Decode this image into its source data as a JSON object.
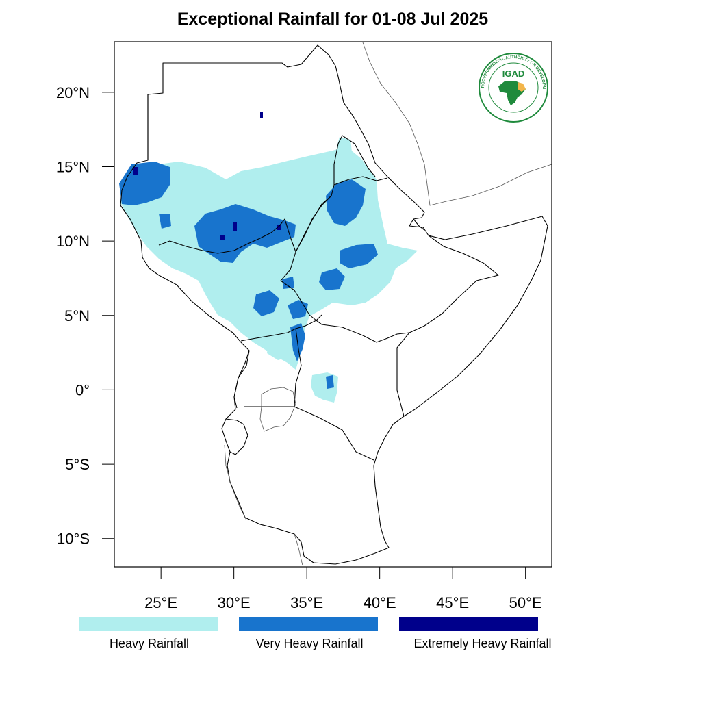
{
  "title": "Exceptional Rainfall for 01-08 Jul 2025",
  "map": {
    "lon_range": [
      21.8,
      51.8
    ],
    "lat_range": [
      -11.9,
      23.4
    ],
    "lat_ticks": [
      {
        "value": 20,
        "label": "20°N"
      },
      {
        "value": 15,
        "label": "15°N"
      },
      {
        "value": 10,
        "label": "10°N"
      },
      {
        "value": 5,
        "label": "5°N"
      },
      {
        "value": 0,
        "label": "0°"
      },
      {
        "value": -5,
        "label": "5°S"
      },
      {
        "value": -10,
        "label": "10°S"
      }
    ],
    "lon_ticks": [
      {
        "value": 25,
        "label": "25°E"
      },
      {
        "value": 30,
        "label": "30°E"
      },
      {
        "value": 35,
        "label": "35°E"
      },
      {
        "value": 40,
        "label": "40°E"
      },
      {
        "value": 45,
        "label": "45°E"
      },
      {
        "value": 50,
        "label": "50°E"
      }
    ]
  },
  "logo": {
    "text": "IGAD",
    "ring_text": "INTERGOVERNMENTAL AUTHORITY ON DEVELOPMENT",
    "color": "#1f8a3c",
    "accent": "#f3b54a"
  },
  "legend": [
    {
      "label": "Heavy Rainfall",
      "color": "#b0eeee"
    },
    {
      "label": "Very Heavy Rainfall",
      "color": "#1874cd"
    },
    {
      "label": "Extremely Heavy Rainfall",
      "color": "#00008b"
    }
  ]
}
